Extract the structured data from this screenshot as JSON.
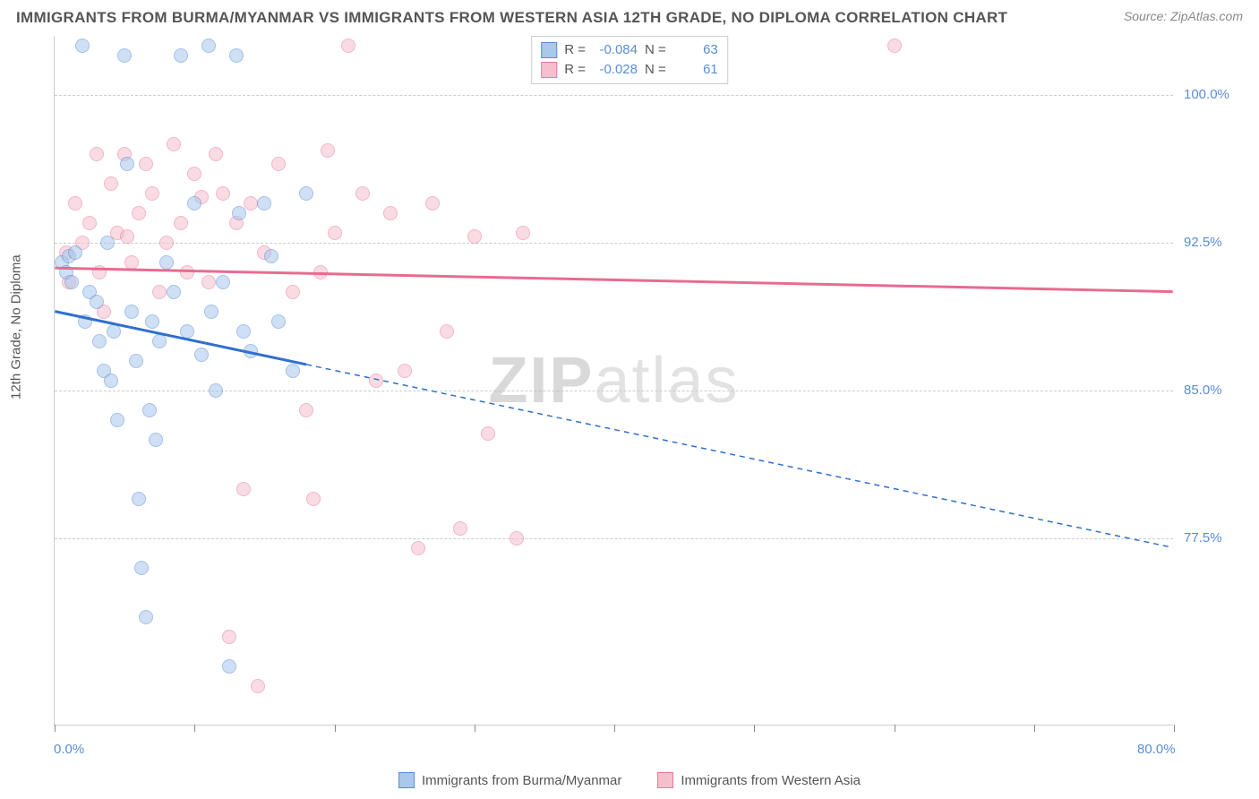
{
  "title": "IMMIGRANTS FROM BURMA/MYANMAR VS IMMIGRANTS FROM WESTERN ASIA 12TH GRADE, NO DIPLOMA CORRELATION CHART",
  "source": "Source: ZipAtlas.com",
  "axis": {
    "y_title": "12th Grade, No Diploma",
    "xlim": [
      0,
      80
    ],
    "ylim": [
      68,
      103
    ],
    "x_ticks": [
      0,
      10,
      20,
      30,
      40,
      50,
      60,
      70,
      80
    ],
    "x_labels": {
      "0": "0.0%",
      "80": "80.0%"
    },
    "y_grid": [
      77.5,
      85.0,
      92.5,
      100.0
    ],
    "y_labels": [
      "77.5%",
      "85.0%",
      "92.5%",
      "100.0%"
    ]
  },
  "watermark": {
    "bold": "ZIP",
    "rest": "atlas"
  },
  "series": {
    "a": {
      "name": "Immigrants from Burma/Myanmar",
      "fill": "#a8c8ec",
      "stroke": "#5b8dd6",
      "line_color": "#2f6fd0",
      "r_label": "R =",
      "r_value": "-0.084",
      "n_label": "N =",
      "n_value": "63",
      "regression": {
        "x1": 0,
        "y1": 89.0,
        "x2_solid": 18,
        "y2_solid": 86.3,
        "x2_dash": 80,
        "y2_dash": 77.0
      },
      "points": [
        [
          0.5,
          91.5
        ],
        [
          0.8,
          91.0
        ],
        [
          1.0,
          91.8
        ],
        [
          1.2,
          90.5
        ],
        [
          1.5,
          92.0
        ],
        [
          2.0,
          102.5
        ],
        [
          2.2,
          88.5
        ],
        [
          2.5,
          90.0
        ],
        [
          3.0,
          89.5
        ],
        [
          3.2,
          87.5
        ],
        [
          3.5,
          86.0
        ],
        [
          3.8,
          92.5
        ],
        [
          4.0,
          85.5
        ],
        [
          4.2,
          88.0
        ],
        [
          4.5,
          83.5
        ],
        [
          5.0,
          102.0
        ],
        [
          5.2,
          96.5
        ],
        [
          5.5,
          89.0
        ],
        [
          5.8,
          86.5
        ],
        [
          6.0,
          79.5
        ],
        [
          6.2,
          76.0
        ],
        [
          6.5,
          73.5
        ],
        [
          6.8,
          84.0
        ],
        [
          7.0,
          88.5
        ],
        [
          7.2,
          82.5
        ],
        [
          7.5,
          87.5
        ],
        [
          8.0,
          91.5
        ],
        [
          8.5,
          90.0
        ],
        [
          9.0,
          102.0
        ],
        [
          9.5,
          88.0
        ],
        [
          10.0,
          94.5
        ],
        [
          10.5,
          86.8
        ],
        [
          11.0,
          102.5
        ],
        [
          11.2,
          89.0
        ],
        [
          11.5,
          85.0
        ],
        [
          12.0,
          90.5
        ],
        [
          12.5,
          71.0
        ],
        [
          13.0,
          102.0
        ],
        [
          13.2,
          94.0
        ],
        [
          13.5,
          88.0
        ],
        [
          14.0,
          87.0
        ],
        [
          15.0,
          94.5
        ],
        [
          15.5,
          91.8
        ],
        [
          16.0,
          88.5
        ],
        [
          17.0,
          86.0
        ],
        [
          18.0,
          95.0
        ]
      ]
    },
    "b": {
      "name": "Immigrants from Western Asia",
      "fill": "#f5c0cd",
      "stroke": "#e97a9a",
      "line_color": "#e86b90",
      "r_label": "R =",
      "r_value": "-0.028",
      "n_label": "N =",
      "n_value": "61",
      "regression": {
        "x1": 0,
        "y1": 91.2,
        "x2": 80,
        "y2": 90.0
      },
      "points": [
        [
          0.8,
          92.0
        ],
        [
          1.0,
          90.5
        ],
        [
          1.5,
          94.5
        ],
        [
          2.0,
          92.5
        ],
        [
          2.5,
          93.5
        ],
        [
          3.0,
          97.0
        ],
        [
          3.2,
          91.0
        ],
        [
          3.5,
          89.0
        ],
        [
          4.0,
          95.5
        ],
        [
          4.5,
          93.0
        ],
        [
          5.0,
          97.0
        ],
        [
          5.2,
          92.8
        ],
        [
          5.5,
          91.5
        ],
        [
          6.0,
          94.0
        ],
        [
          6.5,
          96.5
        ],
        [
          7.0,
          95.0
        ],
        [
          7.5,
          90.0
        ],
        [
          8.0,
          92.5
        ],
        [
          8.5,
          97.5
        ],
        [
          9.0,
          93.5
        ],
        [
          9.5,
          91.0
        ],
        [
          10.0,
          96.0
        ],
        [
          10.5,
          94.8
        ],
        [
          11.0,
          90.5
        ],
        [
          11.5,
          97.0
        ],
        [
          12.0,
          95.0
        ],
        [
          12.5,
          72.5
        ],
        [
          13.0,
          93.5
        ],
        [
          13.5,
          80.0
        ],
        [
          14.0,
          94.5
        ],
        [
          14.5,
          70.0
        ],
        [
          15.0,
          92.0
        ],
        [
          16.0,
          96.5
        ],
        [
          17.0,
          90.0
        ],
        [
          18.0,
          84.0
        ],
        [
          18.5,
          79.5
        ],
        [
          19.0,
          91.0
        ],
        [
          19.5,
          97.2
        ],
        [
          20.0,
          93.0
        ],
        [
          21.0,
          102.5
        ],
        [
          22.0,
          95.0
        ],
        [
          23.0,
          85.5
        ],
        [
          24.0,
          94.0
        ],
        [
          25.0,
          86.0
        ],
        [
          26.0,
          77.0
        ],
        [
          27.0,
          94.5
        ],
        [
          28.0,
          88.0
        ],
        [
          29.0,
          78.0
        ],
        [
          30.0,
          92.8
        ],
        [
          31.0,
          82.8
        ],
        [
          33.0,
          77.5
        ],
        [
          33.5,
          93.0
        ],
        [
          60.0,
          102.5
        ]
      ]
    }
  },
  "style": {
    "marker_radius": 8,
    "marker_opacity": 0.55,
    "line_width_solid": 3,
    "line_width_dash": 1.5,
    "dash_pattern": "6,5",
    "title_color": "#555555",
    "label_color": "#5b8dd6",
    "grid_color": "#cccccc",
    "background": "#ffffff",
    "title_fontsize": 17,
    "label_fontsize": 15
  }
}
